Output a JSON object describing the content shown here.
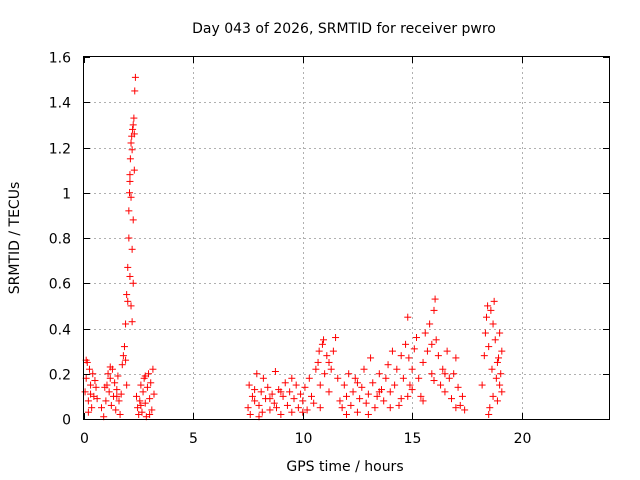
{
  "chart_data": {
    "type": "scatter",
    "title": "Day 043 of 2026, SRMTID for receiver pwro",
    "xlabel": "GPS time / hours",
    "ylabel": "SRMTID / TECUs",
    "xlim": [
      0,
      24
    ],
    "ylim": [
      0,
      1.6
    ],
    "xticks": [
      0,
      5,
      10,
      15,
      20
    ],
    "xtick_labels": [
      "0",
      "5",
      "10",
      "15",
      "20"
    ],
    "yticks": [
      0,
      0.2,
      0.4,
      0.6,
      0.8,
      1.0,
      1.2,
      1.4,
      1.6
    ],
    "ytick_labels": [
      "0",
      "0.2",
      "0.4",
      "0.6",
      "0.8",
      "1",
      "1.2",
      "1.4",
      "1.6"
    ],
    "grid": true,
    "marker": "+",
    "color": "#ff0000",
    "series": [
      {
        "name": "SRMTID",
        "points": [
          [
            0.05,
            0.12
          ],
          [
            0.1,
            0.18
          ],
          [
            0.15,
            0.25
          ],
          [
            0.2,
            0.08
          ],
          [
            0.25,
            0.22
          ],
          [
            0.3,
            0.15
          ],
          [
            0.35,
            0.05
          ],
          [
            0.4,
            0.2
          ],
          [
            0.45,
            0.1
          ],
          [
            0.5,
            0.17
          ],
          [
            0.55,
            0.14
          ],
          [
            0.6,
            0.09
          ],
          [
            0.1,
            0.26
          ],
          [
            0.2,
            0.03
          ],
          [
            0.3,
            0.11
          ],
          [
            0.8,
            0.05
          ],
          [
            0.9,
            0.01
          ],
          [
            1.0,
            0.08
          ],
          [
            1.05,
            0.15
          ],
          [
            1.1,
            0.2
          ],
          [
            1.15,
            0.12
          ],
          [
            1.2,
            0.18
          ],
          [
            1.25,
            0.06
          ],
          [
            1.3,
            0.22
          ],
          [
            1.35,
            0.1
          ],
          [
            1.4,
            0.16
          ],
          [
            1.45,
            0.04
          ],
          [
            1.5,
            0.13
          ],
          [
            1.55,
            0.19
          ],
          [
            1.6,
            0.08
          ],
          [
            1.65,
            0.02
          ],
          [
            1.7,
            0.11
          ],
          [
            1.75,
            0.24
          ],
          [
            1.8,
            0.28
          ],
          [
            1.85,
            0.32
          ],
          [
            1.9,
            0.26
          ],
          [
            1.95,
            0.15
          ],
          [
            1.2,
            0.23
          ],
          [
            1.5,
            0.1
          ],
          [
            0.95,
            0.14
          ],
          [
            1.9,
            0.42
          ],
          [
            1.95,
            0.55
          ],
          [
            2.0,
            0.67
          ],
          [
            2.0,
            0.52
          ],
          [
            2.05,
            0.8
          ],
          [
            2.05,
            0.92
          ],
          [
            2.08,
            1.0
          ],
          [
            2.1,
            1.08
          ],
          [
            2.1,
            0.63
          ],
          [
            2.12,
            1.15
          ],
          [
            2.15,
            1.22
          ],
          [
            2.15,
            0.98
          ],
          [
            2.18,
            1.25
          ],
          [
            2.2,
            1.19
          ],
          [
            2.2,
            0.75
          ],
          [
            2.22,
            1.28
          ],
          [
            2.25,
            1.3
          ],
          [
            2.25,
            0.6
          ],
          [
            2.28,
            1.33
          ],
          [
            2.3,
            1.26
          ],
          [
            2.32,
            1.45
          ],
          [
            2.35,
            1.51
          ],
          [
            2.3,
            1.1
          ],
          [
            2.25,
            0.88
          ],
          [
            2.2,
            0.43
          ],
          [
            2.15,
            0.5
          ],
          [
            2.1,
            1.05
          ],
          [
            2.4,
            0.1
          ],
          [
            2.45,
            0.05
          ],
          [
            2.5,
            0.02
          ],
          [
            2.55,
            0.08
          ],
          [
            2.6,
            0.15
          ],
          [
            2.65,
            0.03
          ],
          [
            2.7,
            0.12
          ],
          [
            2.75,
            0.18
          ],
          [
            2.8,
            0.07
          ],
          [
            2.85,
            0.01
          ],
          [
            2.9,
            0.14
          ],
          [
            2.95,
            0.2
          ],
          [
            3.0,
            0.09
          ],
          [
            3.05,
            0.16
          ],
          [
            3.1,
            0.04
          ],
          [
            3.15,
            0.22
          ],
          [
            3.2,
            0.11
          ],
          [
            2.6,
            0.06
          ],
          [
            2.8,
            0.19
          ],
          [
            3.0,
            0.02
          ],
          [
            7.5,
            0.05
          ],
          [
            7.55,
            0.15
          ],
          [
            7.6,
            0.02
          ],
          [
            7.7,
            0.1
          ],
          [
            7.8,
            0.08
          ],
          [
            7.9,
            0.2
          ],
          [
            8.0,
            0.06
          ],
          [
            8.1,
            0.12
          ],
          [
            8.15,
            0.03
          ],
          [
            8.2,
            0.18
          ],
          [
            8.3,
            0.09
          ],
          [
            8.4,
            0.14
          ],
          [
            8.5,
            0.04
          ],
          [
            8.6,
            0.11
          ],
          [
            8.7,
            0.07
          ],
          [
            8.75,
            0.21
          ],
          [
            8.8,
            0.05
          ],
          [
            8.9,
            0.13
          ],
          [
            9.0,
            0.02
          ],
          [
            9.1,
            0.1
          ],
          [
            9.2,
            0.16
          ],
          [
            9.3,
            0.06
          ],
          [
            9.4,
            0.12
          ],
          [
            9.5,
            0.03
          ],
          [
            9.6,
            0.09
          ],
          [
            9.7,
            0.15
          ],
          [
            9.8,
            0.05
          ],
          [
            9.9,
            0.11
          ],
          [
            10.0,
            0.08
          ],
          [
            10.1,
            0.14
          ],
          [
            10.2,
            0.04
          ],
          [
            10.3,
            0.18
          ],
          [
            10.4,
            0.1
          ],
          [
            10.5,
            0.07
          ],
          [
            10.6,
            0.22
          ],
          [
            10.7,
            0.25
          ],
          [
            10.75,
            0.3
          ],
          [
            10.8,
            0.15
          ],
          [
            10.9,
            0.33
          ],
          [
            10.95,
            0.35
          ],
          [
            11.0,
            0.2
          ],
          [
            11.1,
            0.28
          ],
          [
            11.2,
            0.12
          ],
          [
            11.3,
            0.22
          ],
          [
            11.4,
            0.3
          ],
          [
            11.5,
            0.36
          ],
          [
            11.6,
            0.18
          ],
          [
            11.7,
            0.08
          ],
          [
            7.8,
            0.13
          ],
          [
            8.0,
            0.01
          ],
          [
            8.5,
            0.09
          ],
          [
            9.0,
            0.12
          ],
          [
            9.5,
            0.18
          ],
          [
            10.0,
            0.03
          ],
          [
            10.8,
            0.05
          ],
          [
            11.2,
            0.25
          ],
          [
            11.8,
            0.05
          ],
          [
            11.9,
            0.15
          ],
          [
            12.0,
            0.1
          ],
          [
            12.1,
            0.2
          ],
          [
            12.2,
            0.06
          ],
          [
            12.3,
            0.12
          ],
          [
            12.4,
            0.18
          ],
          [
            12.5,
            0.03
          ],
          [
            12.6,
            0.09
          ],
          [
            12.7,
            0.14
          ],
          [
            12.8,
            0.22
          ],
          [
            12.9,
            0.07
          ],
          [
            13.0,
            0.11
          ],
          [
            13.1,
            0.27
          ],
          [
            13.2,
            0.16
          ],
          [
            13.3,
            0.05
          ],
          [
            13.4,
            0.1
          ],
          [
            13.5,
            0.2
          ],
          [
            13.6,
            0.13
          ],
          [
            13.7,
            0.08
          ],
          [
            13.8,
            0.18
          ],
          [
            13.9,
            0.24
          ],
          [
            14.0,
            0.12
          ],
          [
            14.1,
            0.3
          ],
          [
            14.2,
            0.15
          ],
          [
            14.3,
            0.22
          ],
          [
            14.4,
            0.06
          ],
          [
            14.5,
            0.28
          ],
          [
            14.6,
            0.18
          ],
          [
            14.7,
            0.33
          ],
          [
            14.8,
            0.45
          ],
          [
            14.85,
            0.27
          ],
          [
            14.9,
            0.15
          ],
          [
            15.0,
            0.22
          ],
          [
            15.1,
            0.31
          ],
          [
            15.2,
            0.36
          ],
          [
            15.3,
            0.18
          ],
          [
            15.4,
            0.1
          ],
          [
            15.5,
            0.25
          ],
          [
            15.6,
            0.38
          ],
          [
            15.7,
            0.3
          ],
          [
            15.8,
            0.42
          ],
          [
            15.9,
            0.2
          ],
          [
            16.0,
            0.48
          ],
          [
            16.05,
            0.53
          ],
          [
            16.1,
            0.35
          ],
          [
            16.2,
            0.28
          ],
          [
            16.3,
            0.15
          ],
          [
            16.4,
            0.22
          ],
          [
            16.5,
            0.12
          ],
          [
            16.6,
            0.3
          ],
          [
            16.7,
            0.18
          ],
          [
            16.8,
            0.09
          ],
          [
            16.9,
            0.2
          ],
          [
            17.0,
            0.27
          ],
          [
            17.1,
            0.14
          ],
          [
            17.2,
            0.06
          ],
          [
            17.3,
            0.1
          ],
          [
            17.4,
            0.04
          ],
          [
            12.5,
            0.16
          ],
          [
            13.0,
            0.02
          ],
          [
            13.5,
            0.12
          ],
          [
            14.0,
            0.05
          ],
          [
            14.5,
            0.09
          ],
          [
            15.0,
            0.13
          ],
          [
            15.5,
            0.08
          ],
          [
            16.0,
            0.17
          ],
          [
            16.5,
            0.2
          ],
          [
            17.0,
            0.05
          ],
          [
            12.0,
            0.02
          ],
          [
            14.8,
            0.1
          ],
          [
            15.9,
            0.33
          ],
          [
            18.2,
            0.15
          ],
          [
            18.3,
            0.28
          ],
          [
            18.35,
            0.38
          ],
          [
            18.4,
            0.45
          ],
          [
            18.45,
            0.5
          ],
          [
            18.5,
            0.32
          ],
          [
            18.55,
            0.05
          ],
          [
            18.6,
            0.48
          ],
          [
            18.65,
            0.22
          ],
          [
            18.7,
            0.1
          ],
          [
            18.75,
            0.52
          ],
          [
            18.8,
            0.35
          ],
          [
            18.85,
            0.18
          ],
          [
            18.9,
            0.08
          ],
          [
            18.95,
            0.27
          ],
          [
            19.0,
            0.38
          ],
          [
            19.05,
            0.2
          ],
          [
            19.1,
            0.3
          ],
          [
            19.1,
            0.12
          ],
          [
            18.5,
            0.02
          ],
          [
            18.7,
            0.42
          ],
          [
            18.9,
            0.25
          ],
          [
            19.0,
            0.15
          ]
        ]
      }
    ]
  }
}
